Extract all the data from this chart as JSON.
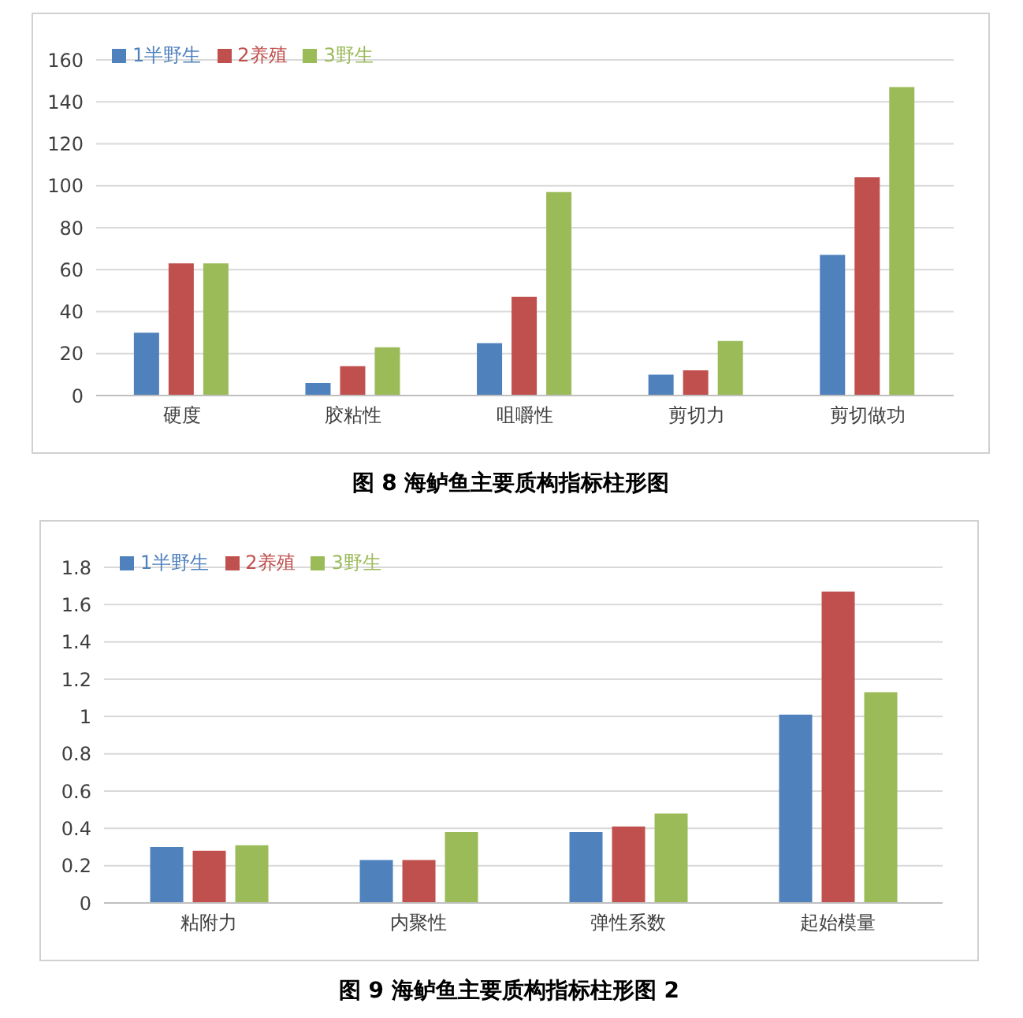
{
  "chart_data": [
    {
      "type": "bar",
      "title": "图 8  海鲈鱼主要质构指标柱形图",
      "categories": [
        "硬度",
        "胶粘性",
        "咀嚼性",
        "剪切力",
        "剪切做功"
      ],
      "series": [
        {
          "name": "1半野生",
          "color": "#4f81bd",
          "values": [
            30,
            6,
            25,
            10,
            67
          ]
        },
        {
          "name": "2养殖",
          "color": "#c0504d",
          "values": [
            63,
            14,
            47,
            12,
            104
          ]
        },
        {
          "name": "3野生",
          "color": "#9bbb59",
          "values": [
            63,
            23,
            97,
            26,
            147
          ]
        }
      ],
      "ylim": [
        0,
        160
      ],
      "yticks": [
        0,
        20,
        40,
        60,
        80,
        100,
        120,
        140,
        160
      ],
      "grid": "y",
      "legend": "top left"
    },
    {
      "type": "bar",
      "title": "图 9  海鲈鱼主要质构指标柱形图 2",
      "categories": [
        "粘附力",
        "内聚性",
        "弹性系数",
        "起始模量"
      ],
      "series": [
        {
          "name": "1半野生",
          "color": "#4f81bd",
          "values": [
            0.3,
            0.23,
            0.38,
            1.01
          ]
        },
        {
          "name": "2养殖",
          "color": "#c0504d",
          "values": [
            0.28,
            0.23,
            0.41,
            1.67
          ]
        },
        {
          "name": "3野生",
          "color": "#9bbb59",
          "values": [
            0.31,
            0.38,
            0.48,
            1.13
          ]
        }
      ],
      "ylim": [
        0,
        1.8
      ],
      "yticks": [
        0,
        0.2,
        0.4,
        0.6,
        0.8,
        1,
        1.2,
        1.4,
        1.6,
        1.8
      ],
      "grid": "y",
      "legend": "top left"
    }
  ]
}
